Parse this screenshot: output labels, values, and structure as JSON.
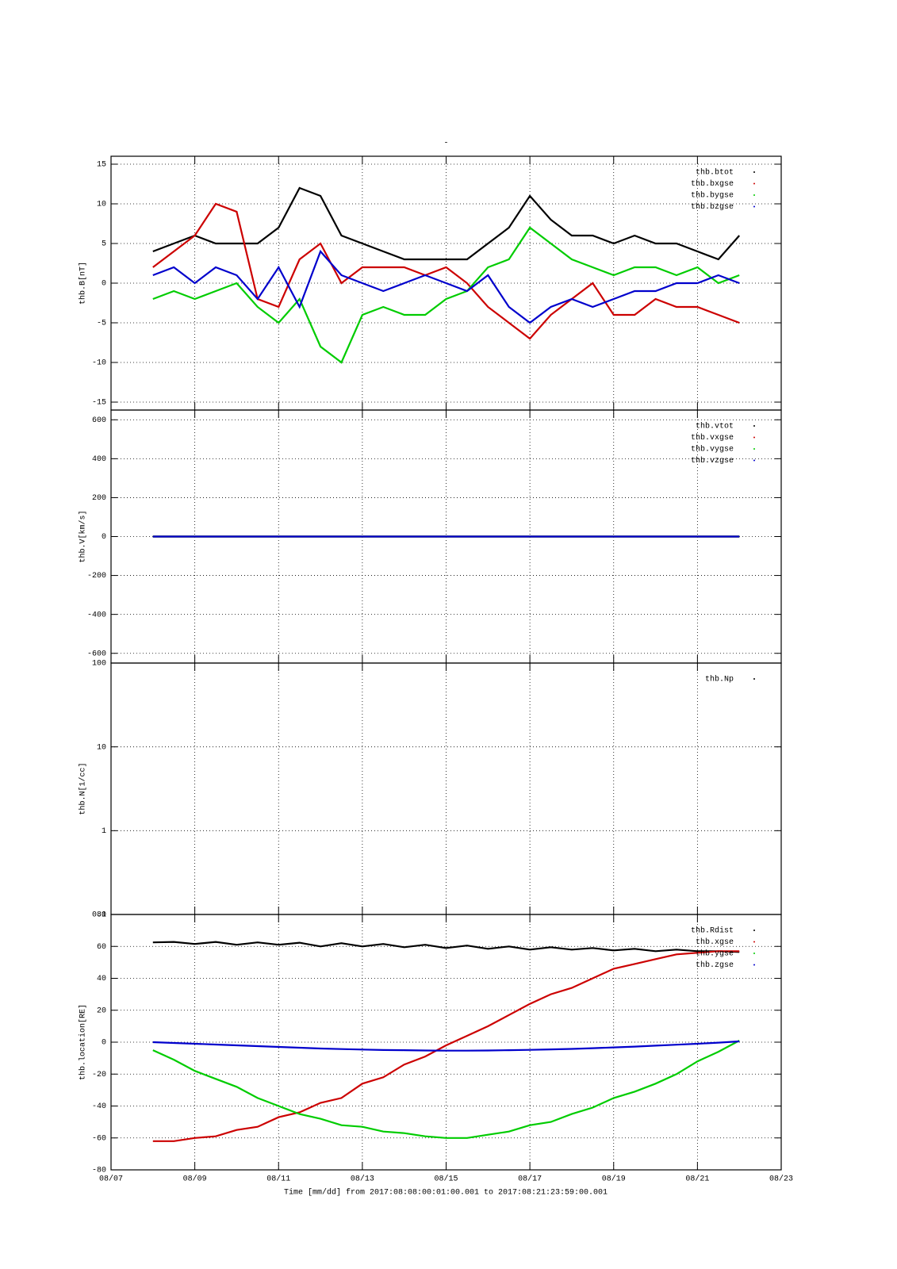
{
  "chart_data": [
    {
      "type": "line",
      "title": "-",
      "ylabel": "thb.B[nT]",
      "xlim": [
        7,
        23
      ],
      "xticks": [
        7,
        9,
        11,
        13,
        15,
        17,
        19,
        21,
        23
      ],
      "ylim": [
        -16,
        16
      ],
      "yticks": [
        -15,
        -10,
        -5,
        0,
        5,
        10,
        15
      ],
      "grid": true,
      "legend": "upper right",
      "x": [
        8,
        8.5,
        9,
        9.5,
        10,
        10.5,
        11,
        11.5,
        12,
        12.5,
        13,
        13.5,
        14,
        14.5,
        15,
        15.5,
        16,
        16.5,
        17,
        17.5,
        18,
        18.5,
        19,
        19.5,
        20,
        20.5,
        21,
        21.5,
        22
      ],
      "series": [
        {
          "name": "thb.btot",
          "color": "#000000",
          "values": [
            4,
            5,
            6,
            5,
            5,
            5,
            7,
            12,
            11,
            6,
            5,
            4,
            3,
            3,
            3,
            3,
            5,
            7,
            11,
            8,
            6,
            6,
            5,
            6,
            5,
            5,
            4,
            3,
            6
          ]
        },
        {
          "name": "thb.bxgse",
          "color": "#cc0000",
          "values": [
            2,
            4,
            6,
            10,
            9,
            -2,
            -3,
            3,
            5,
            0,
            2,
            2,
            2,
            1,
            2,
            0,
            -3,
            -5,
            -7,
            -4,
            -2,
            0,
            -4,
            -4,
            -2,
            -3,
            -3,
            -4,
            -5
          ]
        },
        {
          "name": "thb.bygse",
          "color": "#00cc00",
          "values": [
            -2,
            -1,
            -2,
            -1,
            0,
            -3,
            -5,
            -2,
            -8,
            -10,
            -4,
            -3,
            -4,
            -4,
            -2,
            -1,
            2,
            3,
            7,
            5,
            3,
            2,
            1,
            2,
            2,
            1,
            2,
            0,
            1
          ]
        },
        {
          "name": "thb.bzgse",
          "color": "#0000cc",
          "values": [
            1,
            2,
            0,
            2,
            1,
            -2,
            2,
            -3,
            4,
            1,
            0,
            -1,
            0,
            1,
            0,
            -1,
            1,
            -3,
            -5,
            -3,
            -2,
            -3,
            -2,
            -1,
            -1,
            0,
            0,
            1,
            0
          ]
        }
      ]
    },
    {
      "type": "line",
      "ylabel": "thb.V[km/s]",
      "xlim": [
        7,
        23
      ],
      "xticks": [
        7,
        9,
        11,
        13,
        15,
        17,
        19,
        21,
        23
      ],
      "ylim": [
        -650,
        650
      ],
      "yticks": [
        -600,
        -400,
        -200,
        0,
        200,
        400,
        600
      ],
      "grid": true,
      "legend": "upper right",
      "x": [
        8,
        22
      ],
      "series": [
        {
          "name": "thb.vtot",
          "color": "#000000",
          "values": [
            0,
            0
          ]
        },
        {
          "name": "thb.vxgse",
          "color": "#cc0000",
          "values": [
            0,
            0
          ]
        },
        {
          "name": "thb.vygse",
          "color": "#00cc00",
          "values": [
            0,
            0
          ]
        },
        {
          "name": "thb.vzgse",
          "color": "#0000cc",
          "values": [
            0,
            0
          ]
        }
      ]
    },
    {
      "type": "line",
      "ylabel": "thb.N[1/cc]",
      "xlim": [
        7,
        23
      ],
      "xticks": [
        7,
        9,
        11,
        13,
        15,
        17,
        19,
        21,
        23
      ],
      "ylim": [
        0.1,
        100
      ],
      "yticks": [
        0.1,
        1,
        10,
        100
      ],
      "log_scale": true,
      "grid": true,
      "legend": "upper right",
      "x": [],
      "series": [
        {
          "name": "thb.Np",
          "color": "#000000",
          "values": []
        }
      ]
    },
    {
      "type": "line",
      "ylabel": "thb.location[RE]",
      "xlabel": "Time [mm/dd]  from 2017:08:08:00:01:00.001  to  2017:08:21:23:59:00.001",
      "xlim": [
        7,
        23
      ],
      "xticks": [
        {
          "value": 7,
          "label": "08/07"
        },
        {
          "value": 9,
          "label": "08/09"
        },
        {
          "value": 11,
          "label": "08/11"
        },
        {
          "value": 13,
          "label": "08/13"
        },
        {
          "value": 15,
          "label": "08/15"
        },
        {
          "value": 17,
          "label": "08/17"
        },
        {
          "value": 19,
          "label": "08/19"
        },
        {
          "value": 21,
          "label": "08/21"
        },
        {
          "value": 23,
          "label": "08/23"
        }
      ],
      "ylim": [
        -80,
        80
      ],
      "yticks": [
        -80,
        -60,
        -40,
        -20,
        0,
        20,
        40,
        60,
        80
      ],
      "grid": true,
      "legend": "upper right",
      "x": [
        8,
        8.5,
        9,
        9.5,
        10,
        10.5,
        11,
        11.5,
        12,
        12.5,
        13,
        13.5,
        14,
        14.5,
        15,
        15.5,
        16,
        16.5,
        17,
        17.5,
        18,
        18.5,
        19,
        19.5,
        20,
        20.5,
        21,
        21.5,
        22
      ],
      "series": [
        {
          "name": "thb.Rdist",
          "color": "#000000",
          "values": [
            62.5,
            62.8,
            61.5,
            62.8,
            61,
            62.5,
            61,
            62.3,
            60,
            62,
            60,
            61.5,
            59.5,
            61,
            59,
            60.5,
            58.5,
            60,
            58,
            59.5,
            58,
            59,
            57.5,
            58.5,
            57,
            58,
            57,
            57,
            56.5
          ]
        },
        {
          "name": "thb.xgse",
          "color": "#cc0000",
          "values": [
            -62,
            -62,
            -60,
            -59,
            -55,
            -53,
            -47,
            -44,
            -38,
            -35,
            -26,
            -22,
            -14,
            -9,
            -2,
            4,
            10,
            17,
            24,
            30,
            34,
            40,
            46,
            49,
            52,
            55,
            56,
            57,
            57
          ]
        },
        {
          "name": "thb.ygse",
          "color": "#00cc00",
          "values": [
            -5,
            -11,
            -18,
            -23,
            -28,
            -35,
            -40,
            -45,
            -48,
            -52,
            -53,
            -56,
            -57,
            -59,
            -60,
            -60,
            -58,
            -56,
            -52,
            -50,
            -45,
            -41,
            -35,
            -31,
            -26,
            -20,
            -12,
            -6,
            1
          ]
        },
        {
          "name": "thb.zgse",
          "color": "#0000cc",
          "values": [
            0,
            -0.5,
            -1,
            -1.5,
            -2,
            -2.5,
            -3,
            -3.5,
            -4,
            -4.3,
            -4.6,
            -4.9,
            -5,
            -5.2,
            -5.3,
            -5.3,
            -5.2,
            -5,
            -4.8,
            -4.5,
            -4.2,
            -3.8,
            -3.3,
            -2.8,
            -2.2,
            -1.6,
            -1,
            -0.3,
            0.5
          ]
        }
      ]
    }
  ]
}
